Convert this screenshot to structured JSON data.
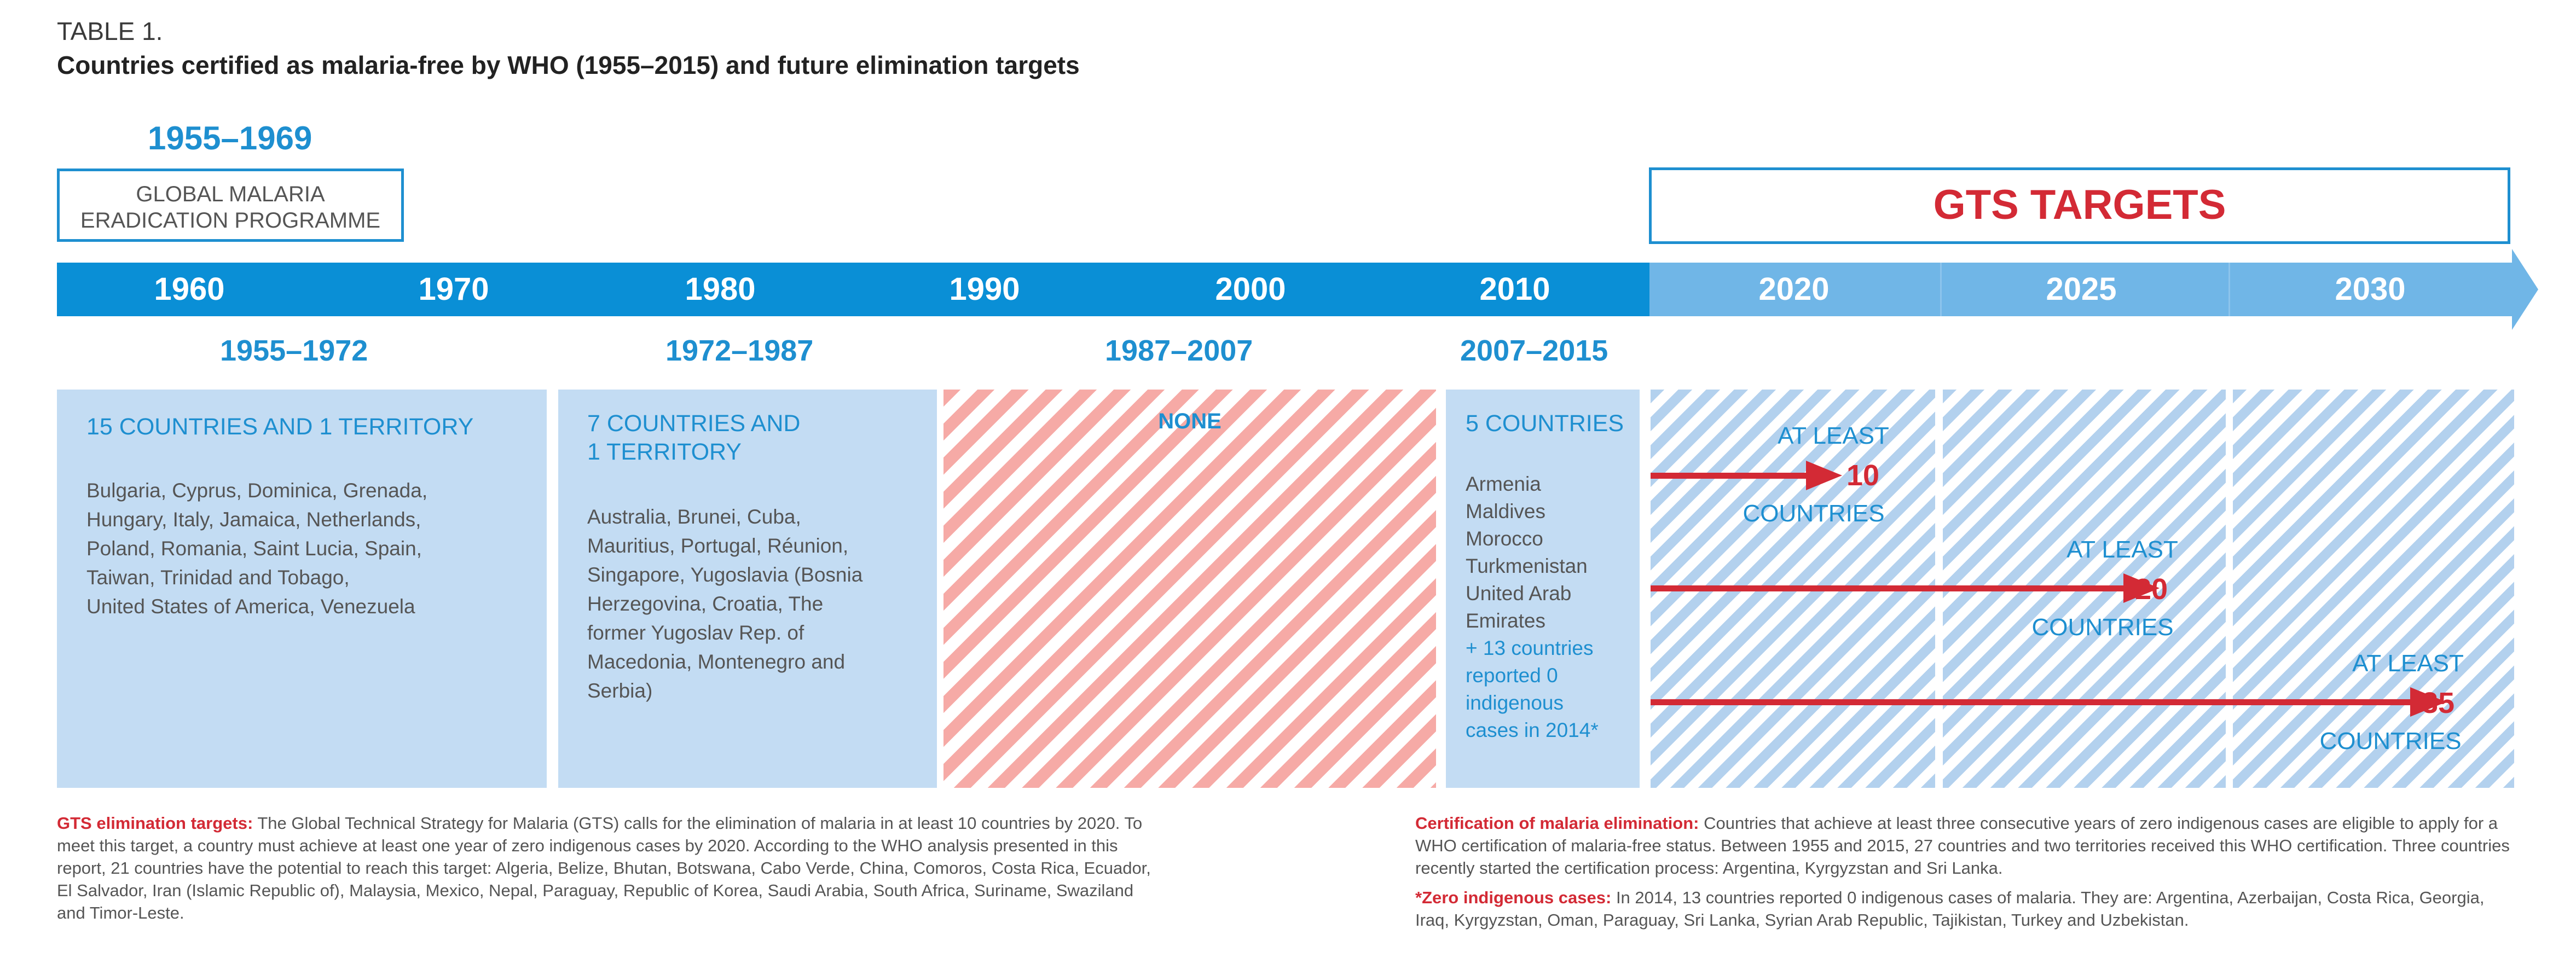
{
  "header": {
    "table_label": "TABLE 1.",
    "title": "Countries certified as malaria-free by WHO (1955–2015) and future elimination targets"
  },
  "programme": {
    "era": "1955–1969",
    "line1": "GLOBAL MALARIA",
    "line2": "ERADICATION PROGRAMME"
  },
  "gts": {
    "title": "GTS TARGETS"
  },
  "timeline": {
    "years": [
      "1960",
      "1970",
      "1980",
      "1990",
      "2000",
      "2010",
      "2020",
      "2025",
      "2030"
    ]
  },
  "eras": [
    "1955–1972",
    "1972–1987",
    "1987–2007",
    "2007–2015"
  ],
  "panels": {
    "p1": {
      "head": "15 COUNTRIES AND 1 TERRITORY",
      "lines": [
        "Bulgaria, Cyprus, Dominica, Grenada,",
        "Hungary, Italy, Jamaica, Netherlands,",
        "Poland, Romania, Saint Lucia, Spain,",
        "Taiwan, Trinidad and Tobago,",
        "United States of America, Venezuela"
      ]
    },
    "p2": {
      "head1": "7 COUNTRIES AND",
      "head2": "1 TERRITORY",
      "lines": [
        "Australia, Brunei, Cuba,",
        "Mauritius, Portugal, Réunion,",
        "Singapore, Yugoslavia (Bosnia",
        "Herzegovina, Croatia, The",
        "former Yugoslav Rep. of",
        "Macedonia, Montenegro and",
        "Serbia)"
      ]
    },
    "p3": {
      "head": "NONE"
    },
    "p4": {
      "head": "5 COUNTRIES",
      "lines": [
        "Armenia",
        "Maldives",
        "Morocco",
        "Turkmenistan",
        "United Arab",
        "Emirates"
      ],
      "note_lines": [
        "+ 13 countries",
        "reported 0",
        "indigenous",
        "cases in 2014*"
      ]
    }
  },
  "targets": [
    {
      "label_top": "AT LEAST",
      "value": "10",
      "label_bottom": "COUNTRIES",
      "year": "2020"
    },
    {
      "label_top": "AT LEAST",
      "value": "20",
      "label_bottom": "COUNTRIES",
      "year": "2025"
    },
    {
      "label_top": "AT LEAST",
      "value": "35",
      "label_bottom": "COUNTRIES",
      "year": "2030"
    }
  ],
  "footnotes": {
    "gts_title": "GTS elimination targets:",
    "gts_text": " The Global Technical Strategy for Malaria (GTS) calls for the elimination of malaria in at least 10 countries by 2020. To meet this target, a country must achieve at least one year of zero indigenous cases by 2020. According to the WHO analysis presented in this report, 21 countries have the potential to reach this target: Algeria, Belize, Bhutan, Botswana, Cabo Verde, China, Comoros, Costa Rica, Ecuador, El Salvador, Iran (Islamic Republic of), Malaysia, Mexico, Nepal, Paraguay, Republic of Korea, Saudi Arabia, South Africa, Suriname, Swaziland and Timor-Leste.",
    "cert_title": "Certification of malaria elimination:",
    "cert_text": " Countries that achieve at least three consecutive years of zero indigenous cases are eligible to apply for a WHO certification of malaria-free status. Between 1955 and 2015, 27 countries and two territories received this WHO certification. Three countries recently started the certification process: Argentina, Kyrgyzstan and Sri Lanka.",
    "zero_title": "*Zero indigenous cases:",
    "zero_text": " In 2014, 13 countries reported 0 indigenous cases of malaria. They are: Argentina, Azerbaijan, Costa Rica, Georgia, Iraq, Kyrgyzstan, Oman, Paraguay, Sri Lanka, Syrian Arab Republic, Tajikistan, Turkey and Uzbekistan."
  },
  "colors": {
    "primary_blue": "#0a8fd6",
    "light_blue": "#70b6e7",
    "panel_blue": "#c3dcf3",
    "target_red": "#d32a35",
    "hatch_red": "#f6aaa6"
  }
}
